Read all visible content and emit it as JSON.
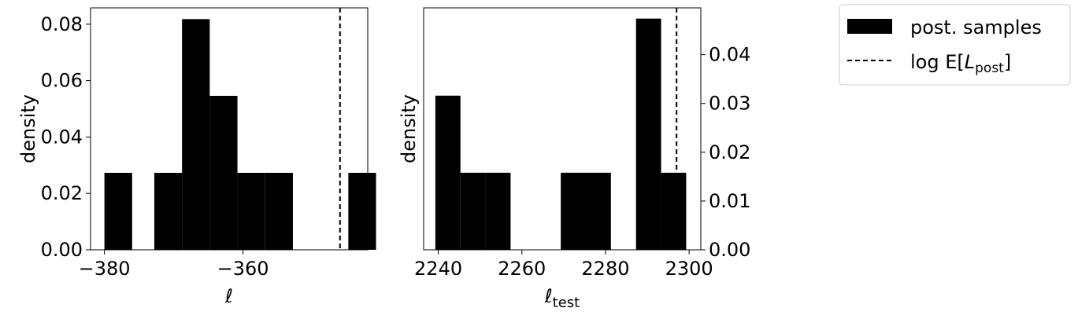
{
  "chart_data": [
    {
      "type": "bar",
      "panel": "left",
      "xlabel": "ℓ",
      "ylabel": "density",
      "xlim": [
        -382,
        -342
      ],
      "ylim": [
        0,
        0.0858
      ],
      "bins": [
        {
          "x0": -380.0,
          "x1": -376.0,
          "density": 0.0273
        },
        {
          "x0": -376.0,
          "x1": -372.8,
          "density": 0.0
        },
        {
          "x0": -372.8,
          "x1": -368.8,
          "density": 0.0273
        },
        {
          "x0": -368.8,
          "x1": -364.8,
          "density": 0.0818
        },
        {
          "x0": -364.8,
          "x1": -360.8,
          "density": 0.0546
        },
        {
          "x0": -360.8,
          "x1": -356.8,
          "density": 0.0273
        },
        {
          "x0": -356.8,
          "x1": -352.8,
          "density": 0.0273
        },
        {
          "x0": -352.8,
          "x1": -348.8,
          "density": 0.0
        },
        {
          "x0": -348.8,
          "x1": -344.8,
          "density": 0.0
        },
        {
          "x0": -344.8,
          "x1": -340.8,
          "density": 0.0273
        }
      ],
      "vline_x": -346.0,
      "yticks": [
        0.0,
        0.02,
        0.04,
        0.06,
        0.08
      ],
      "ytick_labels": [
        "0.00",
        "0.02",
        "0.04",
        "0.06",
        "0.08"
      ],
      "xticks": [
        -380,
        -360
      ],
      "xtick_labels": [
        "−380",
        "−360"
      ],
      "yaxis_side": "left"
    },
    {
      "type": "bar",
      "panel": "right",
      "xlabel": "ℓ",
      "xlabel_sub": "test",
      "ylabel": "density",
      "xlim": [
        2236.5,
        2302.8
      ],
      "ylim": [
        0,
        0.0496
      ],
      "bins": [
        {
          "x0": 2239.3,
          "x1": 2245.3,
          "density": 0.0316
        },
        {
          "x0": 2245.3,
          "x1": 2251.3,
          "density": 0.0158
        },
        {
          "x0": 2251.3,
          "x1": 2257.3,
          "density": 0.0158
        },
        {
          "x0": 2257.3,
          "x1": 2263.3,
          "density": 0.0
        },
        {
          "x0": 2263.3,
          "x1": 2269.3,
          "density": 0.0
        },
        {
          "x0": 2269.3,
          "x1": 2275.3,
          "density": 0.0158
        },
        {
          "x0": 2275.3,
          "x1": 2281.3,
          "density": 0.0158
        },
        {
          "x0": 2281.3,
          "x1": 2287.3,
          "density": 0.0
        },
        {
          "x0": 2287.3,
          "x1": 2293.3,
          "density": 0.0474
        },
        {
          "x0": 2293.3,
          "x1": 2299.3,
          "density": 0.0158
        }
      ],
      "vline_x": 2297.0,
      "yticks": [
        0.0,
        0.01,
        0.02,
        0.03,
        0.04
      ],
      "ytick_labels": [
        "0.00",
        "0.01",
        "0.02",
        "0.03",
        "0.04"
      ],
      "xticks": [
        2240,
        2260,
        2280,
        2300
      ],
      "xtick_labels": [
        "2240",
        "2260",
        "2280",
        "2300"
      ],
      "yaxis_side": "right"
    }
  ],
  "legend": {
    "placement": "top-right",
    "entries": [
      {
        "label": "post. samples",
        "style": "patch"
      },
      {
        "label": "log E[",
        "symbol": "L",
        "sub": "post",
        "suffix": "]",
        "style": "dashed"
      }
    ]
  },
  "colors": {
    "bar": "#000000",
    "line": "#000000",
    "background": "#ffffff"
  }
}
